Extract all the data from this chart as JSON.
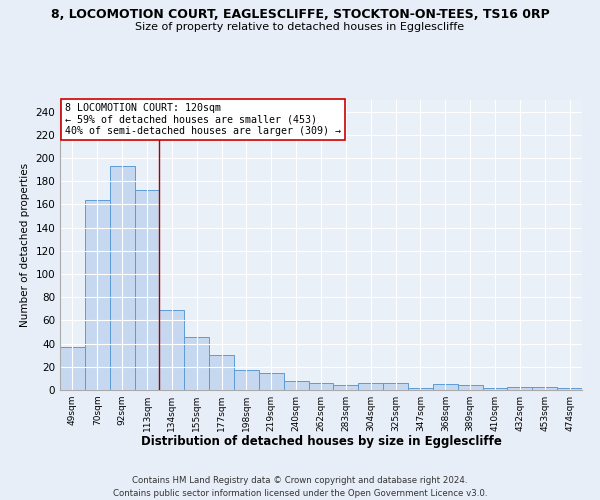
{
  "title1": "8, LOCOMOTION COURT, EAGLESCLIFFE, STOCKTON-ON-TEES, TS16 0RP",
  "title2": "Size of property relative to detached houses in Egglescliffe",
  "xlabel": "Distribution of detached houses by size in Egglescliffe",
  "ylabel": "Number of detached properties",
  "categories": [
    "49sqm",
    "70sqm",
    "92sqm",
    "113sqm",
    "134sqm",
    "155sqm",
    "177sqm",
    "198sqm",
    "219sqm",
    "240sqm",
    "262sqm",
    "283sqm",
    "304sqm",
    "325sqm",
    "347sqm",
    "368sqm",
    "389sqm",
    "410sqm",
    "432sqm",
    "453sqm",
    "474sqm"
  ],
  "values": [
    37,
    164,
    193,
    172,
    69,
    46,
    30,
    17,
    15,
    8,
    6,
    4,
    6,
    6,
    2,
    5,
    4,
    2,
    3,
    3,
    2
  ],
  "bar_color": "#c5d8f0",
  "bar_edge_color": "#5b9bd5",
  "vline_x_index": 3,
  "vline_color": "#aa0000",
  "annotation_lines": [
    "8 LOCOMOTION COURT: 120sqm",
    "← 59% of detached houses are smaller (453)",
    "40% of semi-detached houses are larger (309) →"
  ],
  "annot_box_color": "white",
  "annot_box_edge": "#cc0000",
  "ylim": [
    0,
    250
  ],
  "yticks": [
    0,
    20,
    40,
    60,
    80,
    100,
    120,
    140,
    160,
    180,
    200,
    220,
    240
  ],
  "footer1": "Contains HM Land Registry data © Crown copyright and database right 2024.",
  "footer2": "Contains public sector information licensed under the Open Government Licence v3.0.",
  "bg_color": "#e8eef8",
  "plot_bg_color": "#eaf0f8"
}
